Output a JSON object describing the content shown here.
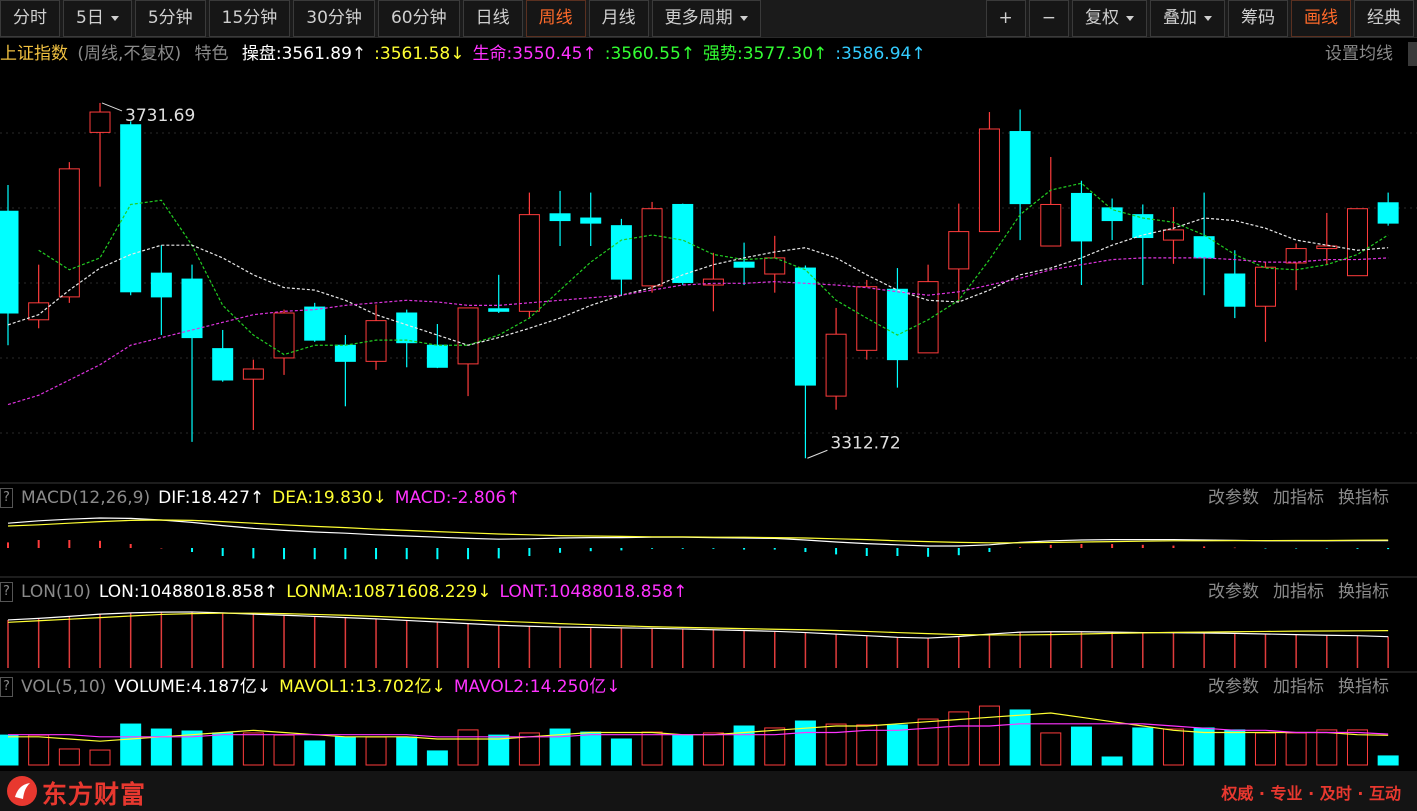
{
  "toolbar": {
    "left": [
      {
        "label": "分时"
      },
      {
        "label": "5日",
        "dropdown": true
      },
      {
        "label": "5分钟"
      },
      {
        "label": "15分钟"
      },
      {
        "label": "30分钟"
      },
      {
        "label": "60分钟"
      },
      {
        "label": "日线"
      },
      {
        "label": "周线",
        "active": true
      },
      {
        "label": "月线"
      },
      {
        "label": "更多周期",
        "dropdown": true
      }
    ],
    "right": [
      {
        "label": "+"
      },
      {
        "label": "−"
      },
      {
        "label": "复权",
        "dropdown": true
      },
      {
        "label": "叠加",
        "dropdown": true
      },
      {
        "label": "筹码"
      },
      {
        "label": "画线",
        "active": true
      },
      {
        "label": "经典"
      }
    ]
  },
  "quote_bar": {
    "title": "上证指数",
    "period": "(周线,不复权)",
    "feature": "特色",
    "indicators": [
      {
        "text": "操盘:3561.89↑",
        "color": "#ffffff"
      },
      {
        "text": ":3561.58↓",
        "color": "#ffff33"
      },
      {
        "text": "生命:3550.45↑",
        "color": "#ff33ff"
      },
      {
        "text": ":3560.55↑",
        "color": "#33ff33"
      },
      {
        "text": "强势:3577.30↑",
        "color": "#33ff33"
      },
      {
        "text": ":3586.94↑",
        "color": "#33ccff"
      }
    ],
    "settings": "设置均线"
  },
  "chart_data": [
    {
      "type": "candlestick",
      "up_color": "#ff3c3c",
      "down_color": "#00ffff",
      "ylim": [
        3280,
        3780
      ],
      "annotate_extremes": true,
      "open": [
        3604,
        3476,
        3503,
        3697,
        3706,
        3531,
        3524,
        3442,
        3406,
        3431,
        3491,
        3446,
        3427,
        3484,
        3446,
        3424,
        3489,
        3486,
        3601,
        3596,
        3587,
        3516,
        3612,
        3517,
        3544,
        3530,
        3537,
        3386,
        3440,
        3512,
        3437,
        3536,
        3580,
        3698,
        3563,
        3625,
        3608,
        3600,
        3570,
        3574,
        3530,
        3492,
        3543,
        3560,
        3528,
        3614
      ],
      "high": [
        3635,
        3541,
        3662,
        3731.69,
        3710,
        3564,
        3541,
        3464,
        3429,
        3488,
        3496,
        3458,
        3494,
        3488,
        3471,
        3490,
        3529,
        3626,
        3628,
        3626,
        3595,
        3615,
        3613,
        3555,
        3567,
        3575,
        3540,
        3490,
        3523,
        3537,
        3541,
        3613,
        3721,
        3724,
        3668,
        3640,
        3619,
        3612,
        3609,
        3626,
        3558,
        3544,
        3566,
        3602,
        3607,
        3626
      ],
      "low": [
        3446,
        3466,
        3496,
        3633,
        3505,
        3458,
        3332,
        3403,
        3346,
        3411,
        3450,
        3374,
        3417,
        3420,
        3419,
        3386,
        3484,
        3478,
        3563,
        3563,
        3504,
        3508,
        3517,
        3486,
        3517,
        3508,
        3312.72,
        3370,
        3429,
        3396,
        3437,
        3497,
        3580,
        3570,
        3563,
        3517,
        3570,
        3517,
        3542,
        3505,
        3478,
        3450,
        3511,
        3541,
        3528,
        3587
      ],
      "close": [
        3484,
        3496,
        3654,
        3721,
        3509,
        3503,
        3455,
        3405,
        3418,
        3484,
        3452,
        3427,
        3475,
        3449,
        3420,
        3490,
        3486,
        3600,
        3593,
        3590,
        3524,
        3607,
        3520,
        3524,
        3538,
        3549,
        3399,
        3459,
        3515,
        3429,
        3521,
        3580,
        3701,
        3613,
        3612,
        3569,
        3593,
        3573,
        3582,
        3549,
        3492,
        3538,
        3560,
        3563,
        3607,
        3590
      ],
      "series": [
        {
          "color": "#22cc22",
          "style": "line",
          "values": [
            null,
            3558,
            3535,
            3549,
            3612,
            3617,
            3564,
            3493,
            3458,
            3435,
            3446,
            3446,
            3452,
            3452,
            3446,
            3446,
            3458,
            3478,
            3511,
            3544,
            3570,
            3576,
            3570,
            3553,
            3547,
            3549,
            3535,
            3499,
            3478,
            3458,
            3476,
            3499,
            3547,
            3600,
            3629,
            3637,
            3606,
            3596,
            3591,
            3576,
            3553,
            3537,
            3535,
            3541,
            3553,
            3576
          ]
        },
        {
          "color": "#e8e8e8",
          "style": "line",
          "values": [
            3470,
            3482,
            3511,
            3537,
            3553,
            3564,
            3564,
            3549,
            3529,
            3514,
            3511,
            3499,
            3482,
            3470,
            3458,
            3446,
            3455,
            3466,
            3478,
            3493,
            3505,
            3514,
            3529,
            3541,
            3549,
            3556,
            3561,
            3549,
            3529,
            3511,
            3499,
            3497,
            3511,
            3529,
            3537,
            3549,
            3564,
            3576,
            3584,
            3596,
            3593,
            3584,
            3570,
            3564,
            3558,
            3561
          ]
        },
        {
          "color": "#dd33dd",
          "style": "line",
          "values": [
            3376,
            3387,
            3405,
            3423,
            3446,
            3455,
            3464,
            3473,
            3482,
            3486,
            3488,
            3493,
            3496,
            3499,
            3497,
            3493,
            3493,
            3496,
            3499,
            3502,
            3505,
            3511,
            3517,
            3519,
            3519,
            3521,
            3519,
            3517,
            3514,
            3509,
            3505,
            3509,
            3517,
            3525,
            3535,
            3541,
            3547,
            3549,
            3549,
            3549,
            3547,
            3544,
            3544,
            3547,
            3547,
            3549
          ]
        }
      ]
    },
    {
      "type": "combo",
      "header": {
        "help": "?",
        "name": "MACD(12,26,9)",
        "entries": [
          {
            "text": "DIF:18.427↑",
            "color": "#ffffff"
          },
          {
            "text": "DEA:19.830↓",
            "color": "#ffff33"
          },
          {
            "text": "MACD:-2.806↑",
            "color": "#ff33ff"
          }
        ],
        "tools": [
          "改参数",
          "加指标",
          "换指标"
        ]
      },
      "ylim": [
        -60,
        100
      ],
      "series": [
        {
          "style": "bar",
          "up_color": "#ff3c3c",
          "down_color": "#00ffff",
          "values": [
            14,
            20,
            20,
            18,
            10,
            0,
            -10,
            -20,
            -26,
            -28,
            -28,
            -28,
            -28,
            -28,
            -28,
            -28,
            -26,
            -20,
            -12,
            -8,
            -6,
            -2,
            -2,
            -2,
            -4,
            -4,
            -10,
            -16,
            -20,
            -20,
            -22,
            -18,
            -10,
            2,
            8,
            10,
            10,
            8,
            6,
            4,
            1,
            -1,
            -1,
            -1,
            -2,
            -2.806
          ]
        },
        {
          "style": "line",
          "color": "#ffffff",
          "values": [
            62,
            68,
            72,
            75,
            74,
            70,
            64,
            56,
            49,
            44,
            40,
            37,
            33,
            30,
            27,
            24,
            22,
            23,
            25,
            26,
            26,
            27,
            27,
            26,
            25,
            24,
            20,
            15,
            11,
            8,
            5,
            5,
            8,
            14,
            18,
            20,
            21,
            21,
            21,
            20,
            19,
            18,
            18,
            18,
            18.5,
            18.427
          ]
        },
        {
          "style": "line",
          "color": "#ffff33",
          "values": [
            55,
            58,
            62,
            66,
            69,
            70,
            69,
            66,
            62,
            58,
            54,
            51,
            47,
            44,
            41,
            38,
            35,
            33,
            31,
            30,
            29,
            28,
            28,
            27,
            27,
            26,
            25,
            23,
            21,
            18,
            16,
            14,
            13,
            13,
            14,
            15,
            16,
            17,
            18,
            18,
            18.5,
            18.6,
            18.7,
            18.8,
            19.5,
            19.83
          ]
        }
      ]
    },
    {
      "type": "combo",
      "header": {
        "help": "?",
        "name": "LON(10)",
        "entries": [
          {
            "text": "LON:10488018.858↑",
            "color": "#ffffff"
          },
          {
            "text": "LONMA:10871608.229↓",
            "color": "#ffff33"
          },
          {
            "text": "LONT:10488018.858↑",
            "color": "#ff33ff"
          }
        ],
        "tools": [
          "改参数",
          "加指标",
          "换指标"
        ]
      },
      "ylim": [
        8500000,
        12500000
      ],
      "series": [
        {
          "style": "stick",
          "color": "#e03c3c",
          "values": [
            11550000,
            11650000,
            11780000,
            11920000,
            12000000,
            12050000,
            12060000,
            12000000,
            11920000,
            11850000,
            11780000,
            11700000,
            11620000,
            11520000,
            11420000,
            11320000,
            11220000,
            11150000,
            11100000,
            11080000,
            11050000,
            11020000,
            10980000,
            10930000,
            10880000,
            10830000,
            10750000,
            10650000,
            10550000,
            10450000,
            10400000,
            10500000,
            10650000,
            10780000,
            10800000,
            10800000,
            10780000,
            10750000,
            10740000,
            10720000,
            10700000,
            10660000,
            10620000,
            10580000,
            10550000,
            10488018.858
          ]
        },
        {
          "style": "line",
          "color": "#ffffff",
          "values": [
            11550000,
            11650000,
            11780000,
            11920000,
            12000000,
            12050000,
            12060000,
            12000000,
            11920000,
            11850000,
            11780000,
            11700000,
            11620000,
            11520000,
            11420000,
            11320000,
            11220000,
            11150000,
            11100000,
            11080000,
            11050000,
            11020000,
            10980000,
            10930000,
            10880000,
            10830000,
            10750000,
            10650000,
            10550000,
            10450000,
            10400000,
            10500000,
            10650000,
            10780000,
            10800000,
            10800000,
            10780000,
            10750000,
            10740000,
            10720000,
            10700000,
            10660000,
            10620000,
            10580000,
            10550000,
            10488018.858
          ]
        },
        {
          "style": "line",
          "color": "#ffff33",
          "values": [
            11400000,
            11500000,
            11600000,
            11700000,
            11800000,
            11900000,
            11950000,
            11980000,
            11980000,
            11950000,
            11900000,
            11850000,
            11780000,
            11700000,
            11620000,
            11550000,
            11470000,
            11400000,
            11320000,
            11250000,
            11180000,
            11120000,
            11080000,
            11040000,
            11000000,
            10960000,
            10930000,
            10880000,
            10820000,
            10750000,
            10680000,
            10620000,
            10600000,
            10600000,
            10620000,
            10660000,
            10700000,
            10730000,
            10760000,
            10780000,
            10800000,
            10820000,
            10840000,
            10850000,
            10860000,
            10871608.229
          ]
        }
      ]
    },
    {
      "type": "combo",
      "header": {
        "help": "?",
        "name": "VOL(5,10)",
        "entries": [
          {
            "text": "VOLUME:4.187亿↓",
            "color": "#ffffff"
          },
          {
            "text": "MAVOL1:13.702亿↓",
            "color": "#ffff33"
          },
          {
            "text": "MAVOL2:14.250亿↓",
            "color": "#ff33ff"
          }
        ],
        "tools": [
          "改参数",
          "加指标",
          "换指标"
        ]
      },
      "ylim": [
        0,
        30
      ],
      "series": [
        {
          "style": "volume",
          "up_color": "#ff3c3c",
          "down_color": "#00ffff",
          "values": [
            13.8,
            13.8,
            7.4,
            6.9,
            18.9,
            16.6,
            15.7,
            14.8,
            14.8,
            13.8,
            11.1,
            12.9,
            12.9,
            12.9,
            6.5,
            16.2,
            13.8,
            14.8,
            16.6,
            15.2,
            12,
            15.2,
            13.8,
            14.8,
            18,
            17.1,
            20.3,
            18.9,
            18.5,
            18.5,
            21.2,
            24.5,
            27.2,
            25.4,
            14.8,
            17.5,
            3.7,
            17.1,
            16.6,
            17.1,
            16.2,
            14.8,
            14.8,
            16.2,
            16.2,
            4.187
          ]
        },
        {
          "style": "line",
          "color": "#ffff33",
          "values": [
            13,
            13,
            12,
            11,
            12,
            13,
            14,
            15,
            16,
            15,
            14,
            13,
            13,
            13,
            12,
            12,
            12,
            13,
            14,
            15,
            15,
            15,
            14,
            14,
            15,
            16,
            17,
            18,
            18,
            19,
            20,
            21,
            22,
            23,
            24,
            22,
            20,
            18,
            16,
            15,
            15,
            15,
            15,
            15,
            14,
            13.702
          ]
        },
        {
          "style": "line",
          "color": "#ff33ff",
          "values": [
            14,
            14,
            14,
            13,
            13,
            13,
            13,
            14,
            14,
            14,
            14,
            14,
            14,
            14,
            13,
            13,
            13,
            13,
            13,
            14,
            14,
            14,
            14,
            14,
            14,
            14,
            15,
            15,
            16,
            16,
            17,
            18,
            18,
            19,
            19,
            19,
            19,
            19,
            18,
            17,
            16,
            16,
            15,
            15,
            15,
            14.25
          ]
        }
      ]
    }
  ],
  "footer": {
    "brand": "东方财富",
    "slogan": "权威 · 专业 · 及时 · 互动"
  }
}
